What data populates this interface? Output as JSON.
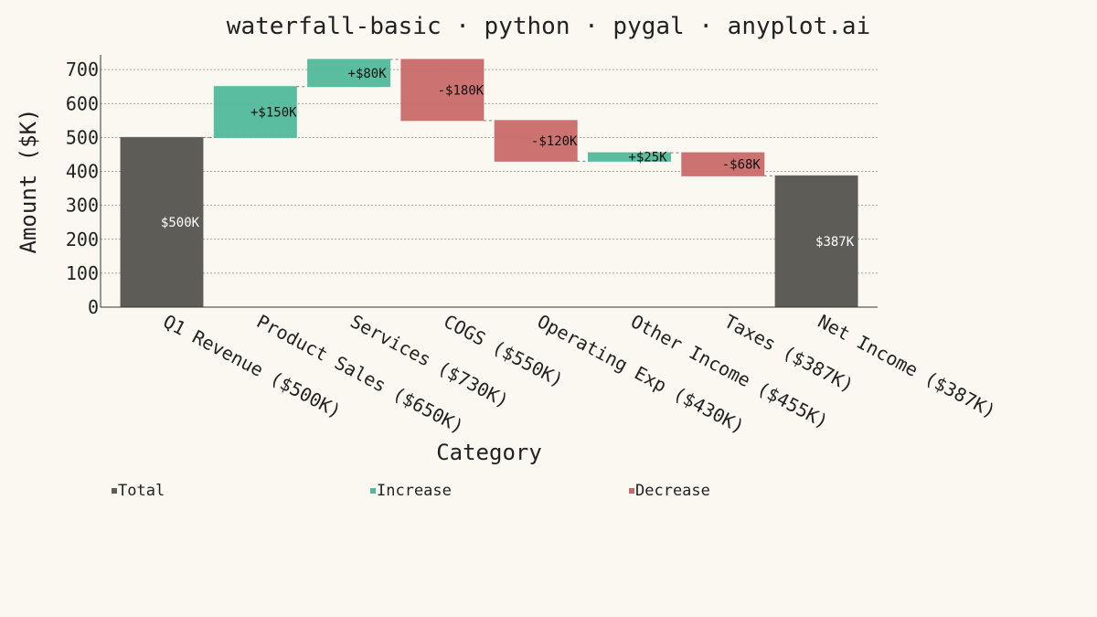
{
  "chart_data": {
    "type": "bar",
    "subtype": "waterfall",
    "title": "waterfall-basic · python · pygal · anyplot.ai",
    "xlabel": "Category",
    "ylabel": "Amount ($K)",
    "ylim": [
      0,
      730
    ],
    "yticks": [
      "0",
      "100",
      "200",
      "300",
      "400",
      "500",
      "600",
      "700"
    ],
    "grid": true,
    "legend_position": "bottom-left",
    "colors": {
      "total": "#5D5C57",
      "increase": "#52B99A",
      "decrease": "#C96A69",
      "total_label_text": "#FFFFFF",
      "delta_label_text": "#111111"
    },
    "legend": [
      {
        "name": "Total",
        "kind": "total"
      },
      {
        "name": "Increase",
        "kind": "increase"
      },
      {
        "name": "Decrease",
        "kind": "decrease"
      }
    ],
    "categories": [
      "Q1 Revenue ($500K)",
      "Product Sales ($650K)",
      "Services ($730K)",
      "COGS ($550K)",
      "Operating Exp ($430K)",
      "Other Income ($455K)",
      "Taxes ($387K)",
      "Net Income ($387K)"
    ],
    "bars": [
      {
        "kind": "total",
        "start": 0,
        "end": 500,
        "label": "$500K"
      },
      {
        "kind": "increase",
        "start": 500,
        "end": 650,
        "label": "+$150K"
      },
      {
        "kind": "increase",
        "start": 650,
        "end": 730,
        "label": "+$80K"
      },
      {
        "kind": "decrease",
        "start": 730,
        "end": 550,
        "label": "-$180K"
      },
      {
        "kind": "decrease",
        "start": 550,
        "end": 430,
        "label": "-$120K"
      },
      {
        "kind": "increase",
        "start": 430,
        "end": 455,
        "label": "+$25K"
      },
      {
        "kind": "decrease",
        "start": 455,
        "end": 387,
        "label": "-$68K"
      },
      {
        "kind": "total",
        "start": 0,
        "end": 387,
        "label": "$387K"
      }
    ]
  }
}
